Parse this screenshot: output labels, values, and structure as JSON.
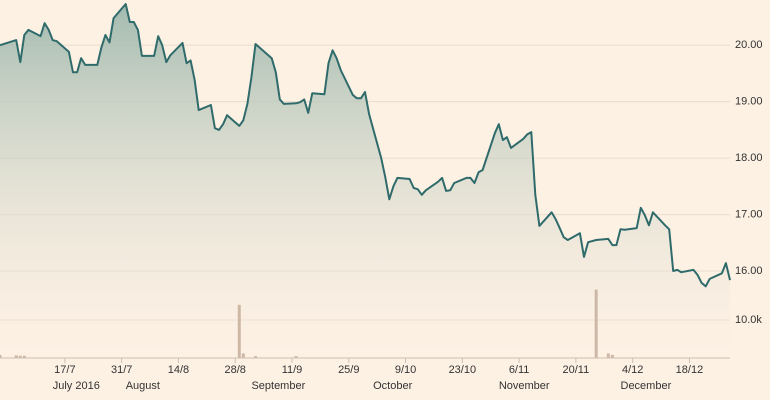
{
  "chart_data": {
    "type": "line",
    "x": [
      "2016-07-01",
      "2016-07-05",
      "2016-07-06",
      "2016-07-07",
      "2016-07-08",
      "2016-07-11",
      "2016-07-12",
      "2016-07-13",
      "2016-07-14",
      "2016-07-15",
      "2016-07-18",
      "2016-07-19",
      "2016-07-20",
      "2016-07-21",
      "2016-07-22",
      "2016-07-25",
      "2016-07-26",
      "2016-07-27",
      "2016-07-28",
      "2016-07-29",
      "2016-08-01",
      "2016-08-02",
      "2016-08-03",
      "2016-08-04",
      "2016-08-05",
      "2016-08-08",
      "2016-08-09",
      "2016-08-10",
      "2016-08-11",
      "2016-08-12",
      "2016-08-15",
      "2016-08-16",
      "2016-08-17",
      "2016-08-18",
      "2016-08-19",
      "2016-08-22",
      "2016-08-23",
      "2016-08-24",
      "2016-08-25",
      "2016-08-26",
      "2016-08-29",
      "2016-08-30",
      "2016-08-31",
      "2016-09-01",
      "2016-09-02",
      "2016-09-06",
      "2016-09-07",
      "2016-09-08",
      "2016-09-09",
      "2016-09-12",
      "2016-09-13",
      "2016-09-14",
      "2016-09-15",
      "2016-09-16",
      "2016-09-19",
      "2016-09-20",
      "2016-09-21",
      "2016-09-22",
      "2016-09-23",
      "2016-09-26",
      "2016-09-27",
      "2016-09-28",
      "2016-09-29",
      "2016-09-30",
      "2016-10-03",
      "2016-10-04",
      "2016-10-05",
      "2016-10-06",
      "2016-10-07",
      "2016-10-10",
      "2016-10-11",
      "2016-10-12",
      "2016-10-13",
      "2016-10-14",
      "2016-10-17",
      "2016-10-18",
      "2016-10-19",
      "2016-10-20",
      "2016-10-21",
      "2016-10-24",
      "2016-10-25",
      "2016-10-26",
      "2016-10-27",
      "2016-10-28",
      "2016-10-31",
      "2016-11-01",
      "2016-11-02",
      "2016-11-03",
      "2016-11-04",
      "2016-11-07",
      "2016-11-08",
      "2016-11-09",
      "2016-11-10",
      "2016-11-11",
      "2016-11-14",
      "2016-11-15",
      "2016-11-16",
      "2016-11-17",
      "2016-11-18",
      "2016-11-21",
      "2016-11-22",
      "2016-11-23",
      "2016-11-25",
      "2016-11-28",
      "2016-11-29",
      "2016-11-30",
      "2016-12-01",
      "2016-12-02",
      "2016-12-05",
      "2016-12-06",
      "2016-12-07",
      "2016-12-08",
      "2016-12-09",
      "2016-12-12",
      "2016-12-13",
      "2016-12-14",
      "2016-12-15",
      "2016-12-16",
      "2016-12-19",
      "2016-12-20",
      "2016-12-21",
      "2016-12-22",
      "2016-12-23",
      "2016-12-26",
      "2016-12-27",
      "2016-12-28"
    ],
    "series": [
      {
        "color": "#2f6b6b",
        "values": [
          20.0,
          20.09,
          19.7,
          20.18,
          20.27,
          20.16,
          20.39,
          20.27,
          20.09,
          20.07,
          19.88,
          19.52,
          19.52,
          19.77,
          19.65,
          19.65,
          19.96,
          20.18,
          20.05,
          20.48,
          20.73,
          20.41,
          20.41,
          20.27,
          19.81,
          19.81,
          20.16,
          20.0,
          19.7,
          19.82,
          20.04,
          19.68,
          19.73,
          19.38,
          18.85,
          18.94,
          18.53,
          18.5,
          18.6,
          18.76,
          18.57,
          18.67,
          18.96,
          19.43,
          20.02,
          19.77,
          19.52,
          19.04,
          18.96,
          18.97,
          18.99,
          19.04,
          18.8,
          19.15,
          19.13,
          19.68,
          19.91,
          19.77,
          19.56,
          19.12,
          19.06,
          19.06,
          19.17,
          18.78,
          18.0,
          17.66,
          17.27,
          17.5,
          17.65,
          17.63,
          17.47,
          17.45,
          17.35,
          17.43,
          17.58,
          17.65,
          17.42,
          17.43,
          17.56,
          17.65,
          17.65,
          17.56,
          17.75,
          17.79,
          18.44,
          18.6,
          18.32,
          18.37,
          18.18,
          18.34,
          18.42,
          18.46,
          17.35,
          16.8,
          17.04,
          16.92,
          16.76,
          16.6,
          16.55,
          16.67,
          16.25,
          16.51,
          16.55,
          16.57,
          16.46,
          16.46,
          16.74,
          16.73,
          16.76,
          17.12,
          16.99,
          16.81,
          17.04,
          16.81,
          16.74,
          16.0,
          16.02,
          15.98,
          16.02,
          15.93,
          15.79,
          15.73,
          15.86,
          15.96,
          16.14,
          15.84
        ]
      },
      {
        "type": "bar",
        "axis": "y2",
        "color": "#cdb8a6",
        "x": [
          "2016-07-01",
          "2016-07-05",
          "2016-07-06",
          "2016-07-07",
          "2016-08-29",
          "2016-08-30",
          "2016-09-02",
          "2016-09-12",
          "2016-11-25",
          "2016-11-28",
          "2016-11-29"
        ],
        "values": [
          800,
          700,
          600,
          600,
          14000,
          1200,
          500,
          500,
          18000,
          1200,
          800
        ]
      }
    ],
    "xlim": [
      "2016-07-01",
      "2016-12-28"
    ],
    "xticks": [
      {
        "value": "2016-07-17",
        "label": "17/7"
      },
      {
        "value": "2016-07-31",
        "label": "31/7"
      },
      {
        "value": "2016-08-14",
        "label": "14/8"
      },
      {
        "value": "2016-08-28",
        "label": "28/8"
      },
      {
        "value": "2016-09-11",
        "label": "11/9"
      },
      {
        "value": "2016-09-25",
        "label": "25/9"
      },
      {
        "value": "2016-10-09",
        "label": "9/10"
      },
      {
        "value": "2016-10-23",
        "label": "23/10"
      },
      {
        "value": "2016-11-06",
        "label": "6/11"
      },
      {
        "value": "2016-11-20",
        "label": "20/11"
      },
      {
        "value": "2016-12-04",
        "label": "4/12"
      },
      {
        "value": "2016-12-18",
        "label": "18/12"
      }
    ],
    "month_ticks": [
      {
        "value": "2016-07-14",
        "label": "July 2016"
      },
      {
        "value": "2016-08-01",
        "label": "August"
      },
      {
        "value": "2016-09-01",
        "label": "September"
      },
      {
        "value": "2016-10-01",
        "label": "October"
      },
      {
        "value": "2016-11-01",
        "label": "November"
      },
      {
        "value": "2016-12-01",
        "label": "December"
      }
    ],
    "ylim": [
      14.46,
      20.8
    ],
    "yticks": [
      {
        "value": 16,
        "label": "16.00"
      },
      {
        "value": 17,
        "label": "17.00"
      },
      {
        "value": 18,
        "label": "18.00"
      },
      {
        "value": 19,
        "label": "19.00"
      },
      {
        "value": 20,
        "label": "20.00"
      }
    ],
    "y2lim": [
      0,
      94200
    ],
    "y2ticks": [
      {
        "value": 10000,
        "label": "10.0k"
      }
    ],
    "grid": true
  }
}
